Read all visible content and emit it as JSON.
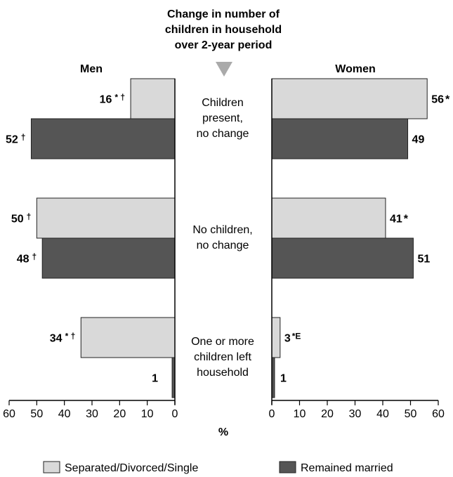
{
  "chart_data": {
    "type": "bar",
    "orientation": "horizontal",
    "layout": "back-to-back",
    "center_title": "Change in number of children in household over 2-year period",
    "center_title_lines": [
      "Change in number of",
      "children in household",
      "over 2-year period"
    ],
    "categories": [
      {
        "lines": [
          "Children",
          "present,",
          "no change"
        ]
      },
      {
        "lines": [
          "No children,",
          "no change"
        ]
      },
      {
        "lines": [
          "One or more",
          "children left",
          "household"
        ]
      }
    ],
    "panels": [
      {
        "name": "Men",
        "direction": "left",
        "xlim": [
          0,
          60
        ],
        "ticks": [
          "60",
          "50",
          "40",
          "30",
          "20",
          "10",
          "0"
        ],
        "series": [
          {
            "name": "Separated/Divorced/Single",
            "values": [
              16,
              50,
              34
            ],
            "labels": [
              "16",
              "50",
              "34"
            ],
            "marks": [
              "* †",
              "†",
              "* †"
            ]
          },
          {
            "name": "Remained married",
            "values": [
              52,
              48,
              1
            ],
            "labels": [
              "52",
              "48",
              "1"
            ],
            "marks": [
              "†",
              "†",
              ""
            ]
          }
        ]
      },
      {
        "name": "Women",
        "direction": "right",
        "xlim": [
          0,
          60
        ],
        "ticks": [
          "0",
          "10",
          "20",
          "30",
          "40",
          "50",
          "60"
        ],
        "series": [
          {
            "name": "Separated/Divorced/Single",
            "values": [
              56,
              41,
              3
            ],
            "labels": [
              "56",
              "41",
              "3"
            ],
            "marks": [
              "*",
              "*",
              "*E"
            ]
          },
          {
            "name": "Remained married",
            "values": [
              49,
              51,
              1
            ],
            "labels": [
              "49",
              "51",
              "1"
            ],
            "marks": [
              "",
              "",
              ""
            ]
          }
        ]
      }
    ],
    "xlabel": "%",
    "legend": [
      {
        "name": "Separated/Divorced/Single",
        "color": "#d9d9d9"
      },
      {
        "name": "Remained married",
        "color": "#555555"
      }
    ],
    "legend_position": "bottom",
    "colors": {
      "light": "#d9d9d9",
      "dark": "#555555",
      "center_arrow": "#aaaaaa"
    }
  }
}
